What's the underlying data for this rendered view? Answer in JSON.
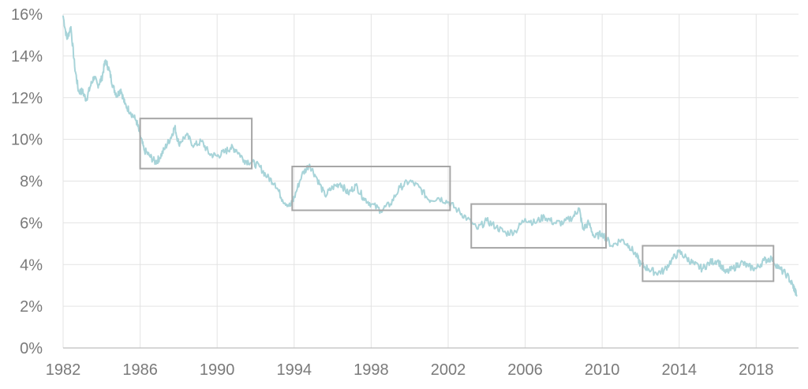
{
  "chart_data": {
    "type": "line",
    "title": "",
    "xlabel": "",
    "ylabel": "",
    "xlim": [
      1982,
      2020.2
    ],
    "ylim": [
      0,
      16
    ],
    "x_ticks": [
      1982,
      1986,
      1990,
      1994,
      1998,
      2002,
      2006,
      2010,
      2014,
      2018
    ],
    "x_tick_labels": [
      "1982",
      "1986",
      "1990",
      "1994",
      "1998",
      "2002",
      "2006",
      "2010",
      "2014",
      "2018"
    ],
    "y_ticks": [
      0,
      2,
      4,
      6,
      8,
      10,
      12,
      14,
      16
    ],
    "y_tick_labels": [
      "0%",
      "2%",
      "4%",
      "6%",
      "8%",
      "10%",
      "12%",
      "14%",
      "16%"
    ],
    "grid": true,
    "colors": {
      "series": "#a8d4d9",
      "box": "#a6a6a6",
      "grid": "#e3e3e3"
    },
    "series": [
      {
        "x": [
          1982.0,
          1982.2,
          1982.4,
          1982.6,
          1982.8,
          1983.0,
          1983.2,
          1983.4,
          1983.6,
          1983.8,
          1984.0,
          1984.2,
          1984.4,
          1984.6,
          1984.8,
          1985.0,
          1985.2,
          1985.5,
          1985.8,
          1986.0,
          1986.2,
          1986.5,
          1986.8,
          1987.0,
          1987.3,
          1987.6,
          1987.8,
          1988.0,
          1988.4,
          1988.8,
          1989.2,
          1989.6,
          1990.0,
          1990.4,
          1990.7,
          1991.0,
          1991.4,
          1991.8,
          1992.2,
          1992.6,
          1993.0,
          1993.4,
          1993.8,
          1994.0,
          1994.4,
          1994.8,
          1995.2,
          1995.6,
          1996.0,
          1996.4,
          1996.8,
          1997.2,
          1997.6,
          1998.0,
          1998.5,
          1999.0,
          1999.5,
          2000.0,
          2000.5,
          2001.0,
          2001.5,
          2002.0,
          2002.5,
          2003.0,
          2003.5,
          2004.0,
          2004.5,
          2005.0,
          2005.5,
          2006.0,
          2006.5,
          2007.0,
          2007.5,
          2008.0,
          2008.5,
          2008.8,
          2009.0,
          2009.3,
          2009.6,
          2010.0,
          2010.5,
          2011.0,
          2011.4,
          2011.8,
          2012.0,
          2012.4,
          2012.8,
          2013.2,
          2013.6,
          2014.0,
          2014.4,
          2014.8,
          2015.2,
          2015.6,
          2016.0,
          2016.4,
          2016.8,
          2017.2,
          2017.6,
          2018.0,
          2018.4,
          2018.8,
          2019.2,
          2019.6,
          2019.9,
          2020.0,
          2020.1
        ],
        "y": [
          15.9,
          14.8,
          15.4,
          13.5,
          12.3,
          12.3,
          11.9,
          12.5,
          13.0,
          12.6,
          12.9,
          13.8,
          13.3,
          12.5,
          12.1,
          12.4,
          11.7,
          11.3,
          10.9,
          10.2,
          9.5,
          9.2,
          8.9,
          9.1,
          9.6,
          10.1,
          10.6,
          9.8,
          10.2,
          9.7,
          9.9,
          9.3,
          9.2,
          9.4,
          9.6,
          9.5,
          9.0,
          8.9,
          8.7,
          8.2,
          7.9,
          7.1,
          6.8,
          7.2,
          8.3,
          8.8,
          8.1,
          7.3,
          7.7,
          7.9,
          7.4,
          7.8,
          7.2,
          6.9,
          6.6,
          6.9,
          7.7,
          8.0,
          7.7,
          7.1,
          7.2,
          7.0,
          6.6,
          6.2,
          5.7,
          6.1,
          5.8,
          5.5,
          5.6,
          6.2,
          6.0,
          6.3,
          6.0,
          6.0,
          6.3,
          6.7,
          5.7,
          6.0,
          5.3,
          5.5,
          4.9,
          5.2,
          4.9,
          4.4,
          4.0,
          3.8,
          3.6,
          3.7,
          4.2,
          4.6,
          4.3,
          4.0,
          3.8,
          4.1,
          4.2,
          3.6,
          3.8,
          4.1,
          3.9,
          3.8,
          4.2,
          4.3,
          3.8,
          3.5,
          3.0,
          2.8,
          2.5
        ]
      }
    ],
    "highlight_boxes": [
      {
        "x_start": 1986.0,
        "x_end": 1991.8,
        "y_low": 8.6,
        "y_high": 11.0
      },
      {
        "x_start": 1993.9,
        "x_end": 2002.1,
        "y_low": 6.6,
        "y_high": 8.7
      },
      {
        "x_start": 2003.2,
        "x_end": 2010.2,
        "y_low": 4.8,
        "y_high": 6.9
      },
      {
        "x_start": 2012.1,
        "x_end": 2018.9,
        "y_low": 3.2,
        "y_high": 4.9
      }
    ]
  }
}
